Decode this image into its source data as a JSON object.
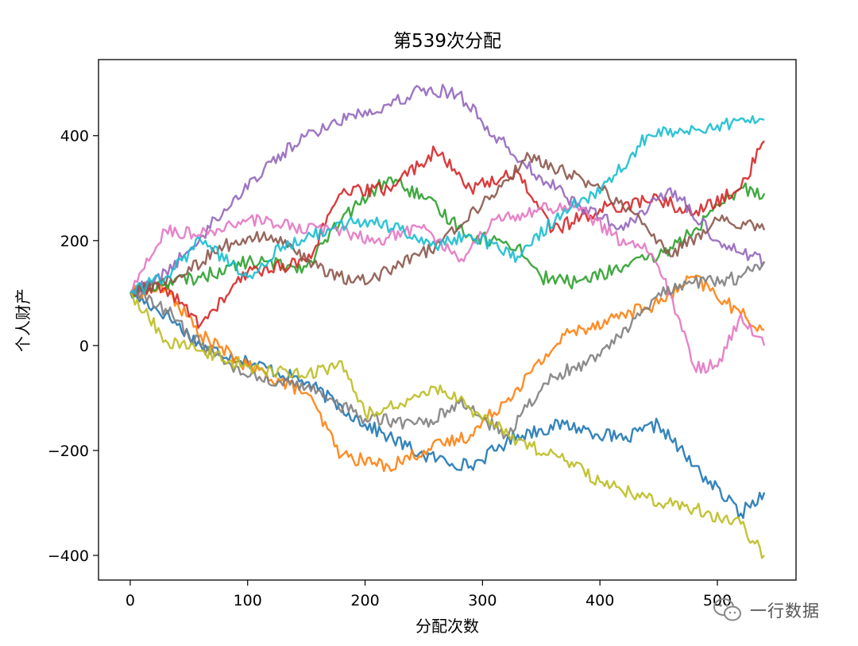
{
  "chart_data": {
    "type": "line",
    "title": "第539次分配",
    "xlabel": "分配次数",
    "ylabel": "个人财产",
    "xlim": [
      -27,
      567
    ],
    "ylim": [
      -447,
      545
    ],
    "xticks": [
      0,
      100,
      200,
      300,
      400,
      500
    ],
    "yticks": [
      -400,
      -200,
      0,
      200,
      400
    ],
    "xtick_labels": [
      "0",
      "100",
      "200",
      "300",
      "400",
      "500"
    ],
    "ytick_labels": [
      "−400",
      "−200",
      "0",
      "200",
      "400"
    ],
    "grid": false,
    "legend": "none",
    "series": [
      {
        "color": "#1f77b4",
        "x": [
          0,
          30,
          60,
          100,
          150,
          200,
          250,
          290,
          330,
          370,
          420,
          450,
          480,
          520,
          540
        ],
        "y": [
          100,
          60,
          0,
          -30,
          -70,
          -150,
          -210,
          -230,
          -170,
          -150,
          -180,
          -150,
          -230,
          -320,
          -280
        ]
      },
      {
        "color": "#ff7f0e",
        "x": [
          0,
          30,
          60,
          100,
          150,
          180,
          220,
          250,
          290,
          330,
          370,
          420,
          450,
          480,
          520,
          540
        ],
        "y": [
          100,
          110,
          20,
          -40,
          -90,
          -210,
          -230,
          -200,
          -170,
          -80,
          20,
          60,
          80,
          130,
          60,
          30
        ]
      },
      {
        "color": "#2ca02c",
        "x": [
          0,
          30,
          60,
          100,
          150,
          180,
          220,
          250,
          290,
          330,
          350,
          380,
          420,
          450,
          480,
          520,
          540
        ],
        "y": [
          100,
          120,
          130,
          160,
          150,
          240,
          320,
          280,
          210,
          190,
          130,
          120,
          150,
          170,
          220,
          300,
          290
        ]
      },
      {
        "color": "#d62728",
        "x": [
          0,
          30,
          60,
          100,
          150,
          180,
          220,
          260,
          290,
          330,
          360,
          400,
          450,
          480,
          520,
          540
        ],
        "y": [
          100,
          110,
          40,
          140,
          160,
          290,
          300,
          370,
          300,
          330,
          220,
          260,
          280,
          250,
          300,
          390
        ]
      },
      {
        "color": "#9467bd",
        "x": [
          0,
          20,
          50,
          80,
          120,
          150,
          190,
          220,
          250,
          280,
          310,
          350,
          380,
          420,
          460,
          500,
          540
        ],
        "y": [
          100,
          120,
          180,
          260,
          350,
          400,
          440,
          460,
          490,
          480,
          400,
          320,
          270,
          220,
          300,
          200,
          160
        ]
      },
      {
        "color": "#8c564b",
        "x": [
          0,
          40,
          80,
          120,
          150,
          190,
          220,
          260,
          300,
          340,
          370,
          400,
          430,
          460,
          500,
          540
        ],
        "y": [
          100,
          130,
          190,
          210,
          160,
          120,
          140,
          190,
          270,
          360,
          330,
          300,
          250,
          170,
          240,
          220
        ]
      },
      {
        "color": "#e377c2",
        "x": [
          0,
          30,
          60,
          100,
          130,
          170,
          210,
          250,
          280,
          310,
          350,
          380,
          410,
          440,
          460,
          480,
          500,
          520,
          540
        ],
        "y": [
          100,
          220,
          210,
          240,
          230,
          220,
          200,
          230,
          160,
          240,
          260,
          270,
          210,
          180,
          100,
          -40,
          -40,
          60,
          0
        ]
      },
      {
        "color": "#7f7f7f",
        "x": [
          0,
          30,
          60,
          100,
          150,
          200,
          250,
          280,
          320,
          360,
          400,
          450,
          480,
          520,
          540
        ],
        "y": [
          100,
          70,
          0,
          -60,
          -80,
          -140,
          -150,
          -110,
          -170,
          -60,
          -20,
          100,
          120,
          130,
          160
        ]
      },
      {
        "color": "#bcbd22",
        "x": [
          0,
          30,
          60,
          100,
          150,
          180,
          200,
          230,
          260,
          290,
          330,
          370,
          400,
          450,
          480,
          520,
          540
        ],
        "y": [
          100,
          10,
          -10,
          -40,
          -60,
          -30,
          -130,
          -110,
          -80,
          -120,
          -180,
          -220,
          -260,
          -300,
          -310,
          -340,
          -400
        ]
      },
      {
        "color": "#17becf",
        "x": [
          0,
          30,
          60,
          100,
          130,
          170,
          200,
          230,
          260,
          290,
          330,
          370,
          400,
          440,
          470,
          500,
          540
        ],
        "y": [
          100,
          130,
          200,
          130,
          190,
          220,
          240,
          220,
          190,
          210,
          170,
          260,
          290,
          400,
          410,
          420,
          430
        ]
      }
    ]
  },
  "watermark": {
    "text": "一行数据"
  }
}
